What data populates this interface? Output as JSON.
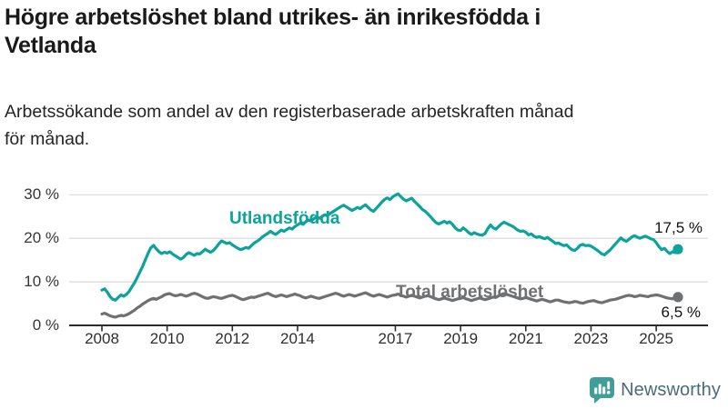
{
  "header": {
    "title_lines": [
      "Högre arbetslöshet bland utrikes- än inrikesfödda i",
      "Vetlanda"
    ],
    "subtitle_lines": [
      "Arbetssökande som andel av den registerbaserade arbetskraften månad",
      "för månad."
    ]
  },
  "chart_data": {
    "type": "line",
    "title": "Högre arbetslöshet bland utrikes- än inrikesfödda i Vetlanda",
    "subtitle": "Arbetssökande som andel av den registerbaserade arbetskraften månad för månad.",
    "unit": "%",
    "grid": "horizontal-only",
    "x_start_year": 2008,
    "x_step_months": 1,
    "xlim": [
      2008,
      2025.75
    ],
    "ylim": [
      0,
      31
    ],
    "x_ticks": [
      {
        "year": 2008,
        "label": "2008"
      },
      {
        "year": 2010,
        "label": "2010"
      },
      {
        "year": 2012,
        "label": "2012"
      },
      {
        "year": 2014,
        "label": "2014"
      },
      {
        "year": 2017,
        "label": "2017"
      },
      {
        "year": 2019,
        "label": "2019"
      },
      {
        "year": 2021,
        "label": "2021"
      },
      {
        "year": 2023,
        "label": "2023"
      },
      {
        "year": 2025,
        "label": "2025"
      }
    ],
    "y_ticks": [
      {
        "value": 0,
        "label": "0 %"
      },
      {
        "value": 10,
        "label": "10 %"
      },
      {
        "value": 20,
        "label": "20 %"
      },
      {
        "value": 30,
        "label": "30 %"
      }
    ],
    "series": [
      {
        "name": "Utlandsfödda",
        "color": "#0ba39b",
        "end_label": "17,5 %",
        "end_value": 17.5,
        "values": [
          8.1,
          8.4,
          7.6,
          6.6,
          6.0,
          5.8,
          6.4,
          7.0,
          6.7,
          7.1,
          7.8,
          8.8,
          9.8,
          11.0,
          12.3,
          13.6,
          15.1,
          16.6,
          17.8,
          18.4,
          17.6,
          16.9,
          16.5,
          16.8,
          16.6,
          16.9,
          16.4,
          16.0,
          15.6,
          15.2,
          15.6,
          16.3,
          16.7,
          16.4,
          16.1,
          16.5,
          16.4,
          16.9,
          17.5,
          17.1,
          16.8,
          17.2,
          17.9,
          18.7,
          19.4,
          19.1,
          18.8,
          19.0,
          18.5,
          18.1,
          17.7,
          17.4,
          17.6,
          17.9,
          17.7,
          18.3,
          18.9,
          19.3,
          19.7,
          20.3,
          20.7,
          21.1,
          21.6,
          21.2,
          20.9,
          21.4,
          21.9,
          21.6,
          22.0,
          22.4,
          22.1,
          22.7,
          23.1,
          23.5,
          23.2,
          23.8,
          24.2,
          24.0,
          24.5,
          24.9,
          24.6,
          25.0,
          25.4,
          25.2,
          25.7,
          26.1,
          26.5,
          26.9,
          27.3,
          27.6,
          27.2,
          26.8,
          26.4,
          26.7,
          27.1,
          26.8,
          27.3,
          27.7,
          27.1,
          26.5,
          26.2,
          26.9,
          27.6,
          28.3,
          28.9,
          29.3,
          28.9,
          29.5,
          29.9,
          30.2,
          29.6,
          29.0,
          28.6,
          28.9,
          29.2,
          28.5,
          27.9,
          27.3,
          26.6,
          26.2,
          25.6,
          24.9,
          24.2,
          23.6,
          23.3,
          23.6,
          23.9,
          23.5,
          23.8,
          23.2,
          22.4,
          21.9,
          21.8,
          22.4,
          21.9,
          21.3,
          20.9,
          21.3,
          21.0,
          20.8,
          20.7,
          21.1,
          22.2,
          23.1,
          22.4,
          22.1,
          22.7,
          23.3,
          23.7,
          23.4,
          23.1,
          22.8,
          22.4,
          21.9,
          21.6,
          21.7,
          21.4,
          20.8,
          21.0,
          20.5,
          20.2,
          20.4,
          20.1,
          19.9,
          20.2,
          19.7,
          19.3,
          18.8,
          18.9,
          18.6,
          18.3,
          18.5,
          17.9,
          17.4,
          17.2,
          17.7,
          18.4,
          18.6,
          18.3,
          18.4,
          18.2,
          17.8,
          17.4,
          16.9,
          16.4,
          16.2,
          16.8,
          17.3,
          18.0,
          18.7,
          19.4,
          20.1,
          19.6,
          19.3,
          19.8,
          20.3,
          20.6,
          20.3,
          20.0,
          20.3,
          20.5,
          20.2,
          19.9,
          19.7,
          19.0,
          18.1,
          17.4,
          17.7,
          17.0,
          16.5,
          16.9,
          16.7,
          17.5
        ]
      },
      {
        "name": "Total arbetslöshet",
        "color": "#6f7072",
        "end_label": "6,5 %",
        "end_value": 6.5,
        "values": [
          2.6,
          2.8,
          2.5,
          2.2,
          2.0,
          1.9,
          2.1,
          2.3,
          2.2,
          2.4,
          2.7,
          3.1,
          3.5,
          4.0,
          4.4,
          4.9,
          5.3,
          5.7,
          6.0,
          6.2,
          6.0,
          6.3,
          6.6,
          7.0,
          7.2,
          7.3,
          7.0,
          6.8,
          6.9,
          7.1,
          6.9,
          6.7,
          6.9,
          7.2,
          7.4,
          7.2,
          6.9,
          6.6,
          6.3,
          6.2,
          6.4,
          6.6,
          6.5,
          6.3,
          6.2,
          6.4,
          6.6,
          6.8,
          6.9,
          6.7,
          6.4,
          6.1,
          5.9,
          6.1,
          6.3,
          6.5,
          6.4,
          6.6,
          6.8,
          7.0,
          7.2,
          7.4,
          7.1,
          6.8,
          6.6,
          6.8,
          7.0,
          6.8,
          6.6,
          6.8,
          7.0,
          7.2,
          7.0,
          6.8,
          6.5,
          6.3,
          6.5,
          6.7,
          6.5,
          6.3,
          6.2,
          6.4,
          6.6,
          6.8,
          7.0,
          7.2,
          7.4,
          7.2,
          6.9,
          6.7,
          6.9,
          7.1,
          6.9,
          6.7,
          6.9,
          7.1,
          7.3,
          7.5,
          7.2,
          6.9,
          6.7,
          6.9,
          7.1,
          6.9,
          6.7,
          6.5,
          6.7,
          6.9,
          7.0,
          7.2,
          6.9,
          6.7,
          6.5,
          6.7,
          6.9,
          6.7,
          6.5,
          6.3,
          6.5,
          6.7,
          6.8,
          6.6,
          6.3,
          6.1,
          5.9,
          6.1,
          6.3,
          6.1,
          5.9,
          5.7,
          5.9,
          6.1,
          6.2,
          6.4,
          6.1,
          5.9,
          5.7,
          5.9,
          6.1,
          6.3,
          6.1,
          5.9,
          6.1,
          6.3,
          6.5,
          6.4,
          6.8,
          7.1,
          7.3,
          7.1,
          6.9,
          6.7,
          6.5,
          6.3,
          6.1,
          6.2,
          6.4,
          6.2,
          6.0,
          5.8,
          5.6,
          5.8,
          6.0,
          5.8,
          5.6,
          5.4,
          5.6,
          5.8,
          5.8,
          5.6,
          5.4,
          5.3,
          5.2,
          5.3,
          5.5,
          5.4,
          5.2,
          5.1,
          5.3,
          5.5,
          5.6,
          5.7,
          5.5,
          5.3,
          5.2,
          5.4,
          5.6,
          5.8,
          5.9,
          6.0,
          6.2,
          6.4,
          6.6,
          6.8,
          6.9,
          6.8,
          6.6,
          6.7,
          6.9,
          6.8,
          6.7,
          6.6,
          6.8,
          6.9,
          7.0,
          6.9,
          6.7,
          6.5,
          6.3,
          6.2,
          6.1,
          6.3,
          6.5
        ]
      }
    ],
    "colors": {
      "axis": "#2b2b2b",
      "gridline": "#d9d9d9",
      "accent_teal": "#0ba39b",
      "accent_gray": "#6f7072"
    }
  },
  "footer": {
    "brand": "Newsworthy",
    "logo_icon": "bar-chart-speech-bubble-icon",
    "brand_color": "#4a6a80",
    "icon_color": "#3f9e97"
  }
}
